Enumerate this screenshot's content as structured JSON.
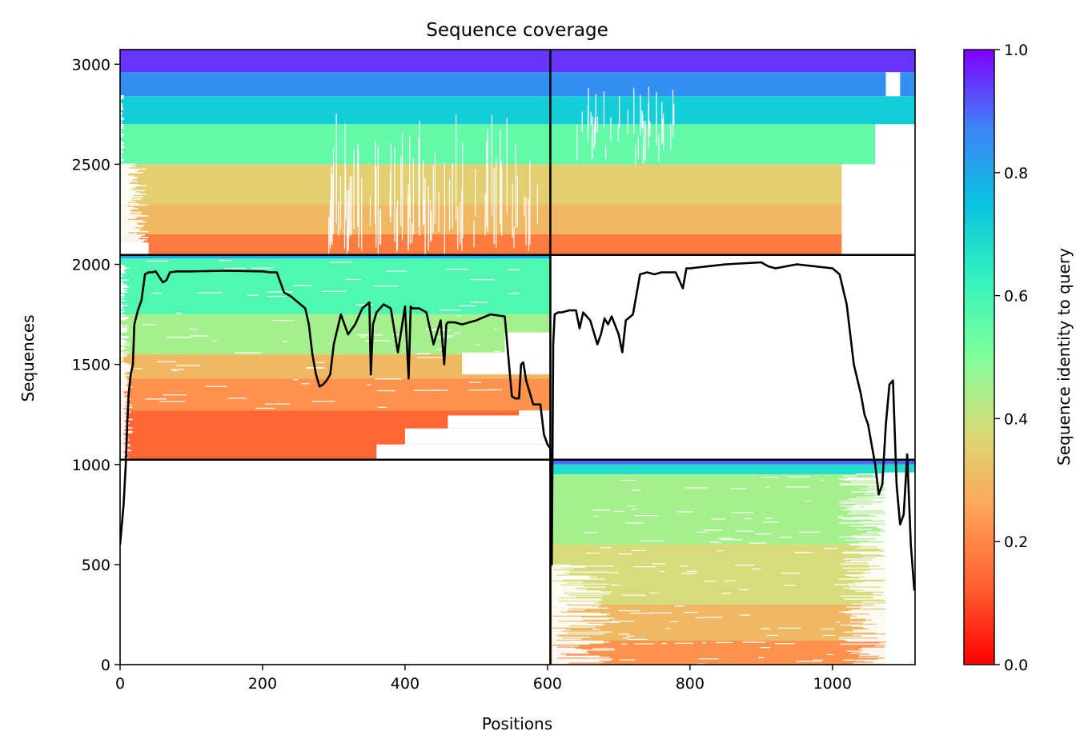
{
  "chart_data": {
    "type": "heatmap",
    "title": "Sequence coverage",
    "xlabel": "Positions",
    "ylabel": "Sequences",
    "xlim": [
      0,
      1116
    ],
    "ylim": [
      0,
      3073
    ],
    "x_ticks": [
      0,
      200,
      400,
      600,
      800,
      1000
    ],
    "y_ticks": [
      0,
      500,
      1000,
      1500,
      2000,
      2500,
      3000
    ],
    "colorbar": {
      "label": "Sequence identity to query",
      "colormap": "rainbow_r",
      "range": [
        0.0,
        1.0
      ],
      "ticks": [
        "0.0",
        "0.2",
        "0.4",
        "0.6",
        "0.8",
        "1.0"
      ]
    },
    "chain_boundary_x": 604,
    "block_boundaries_y": [
      1024,
      2047
    ],
    "blocks": [
      {
        "name": "chain-A-and-chain-B-paired",
        "x": [
          0,
          1116
        ],
        "y": [
          2047,
          3073
        ],
        "identity_bands": [
          {
            "y": [
              2960,
              3073
            ],
            "identity": 0.95
          },
          {
            "y": [
              2840,
              2960
            ],
            "identity": 0.85
          },
          {
            "y": [
              2700,
              2840
            ],
            "identity": 0.72
          },
          {
            "y": [
              2500,
              2700
            ],
            "identity": 0.55
          },
          {
            "y": [
              2300,
              2500
            ],
            "identity": 0.35
          },
          {
            "y": [
              2150,
              2300
            ],
            "identity": 0.3
          },
          {
            "y": [
              2047,
              2150
            ],
            "identity": 0.18
          }
        ]
      },
      {
        "name": "chain-A-unpaired",
        "x": [
          0,
          604
        ],
        "y": [
          1024,
          2047
        ],
        "identity_bands": [
          {
            "y": [
              2030,
              2047
            ],
            "identity": 0.8
          },
          {
            "y": [
              1750,
              2030
            ],
            "identity": 0.58
          },
          {
            "y": [
              1550,
              1750
            ],
            "identity": 0.45
          },
          {
            "y": [
              1430,
              1550
            ],
            "identity": 0.3
          },
          {
            "y": [
              1270,
              1430
            ],
            "identity": 0.22
          },
          {
            "y": [
              1024,
              1270
            ],
            "identity": 0.14
          }
        ]
      },
      {
        "name": "chain-B-unpaired",
        "x": [
          604,
          1116
        ],
        "y": [
          0,
          1024
        ],
        "identity_bands": [
          {
            "y": [
              1000,
              1024
            ],
            "identity": 0.9
          },
          {
            "y": [
              950,
              1000
            ],
            "identity": 0.68
          },
          {
            "y": [
              600,
              950
            ],
            "identity": 0.45
          },
          {
            "y": [
              300,
              600
            ],
            "identity": 0.38
          },
          {
            "y": [
              120,
              300
            ],
            "identity": 0.3
          },
          {
            "y": [
              0,
              120
            ],
            "identity": 0.22
          }
        ]
      }
    ],
    "coverage_line": {
      "x": [
        0,
        5,
        8,
        10,
        12,
        15,
        18,
        20,
        25,
        30,
        35,
        40,
        45,
        50,
        60,
        65,
        70,
        80,
        100,
        150,
        200,
        210,
        220,
        230,
        240,
        250,
        260,
        265,
        270,
        275,
        280,
        285,
        290,
        295,
        300,
        310,
        320,
        330,
        340,
        350,
        352,
        355,
        360,
        370,
        380,
        390,
        400,
        405,
        408,
        410,
        420,
        430,
        440,
        450,
        455,
        458,
        460,
        470,
        480,
        490,
        500,
        520,
        540,
        550,
        555,
        560,
        563,
        566,
        570,
        580,
        590,
        595,
        600,
        604,
        606,
        608,
        610,
        615,
        620,
        630,
        640,
        645,
        650,
        660,
        670,
        675,
        680,
        685,
        690,
        700,
        705,
        710,
        720,
        730,
        740,
        750,
        760,
        780,
        790,
        795,
        800,
        850,
        900,
        910,
        920,
        950,
        1000,
        1010,
        1020,
        1030,
        1040,
        1045,
        1050,
        1055,
        1060,
        1065,
        1070,
        1075,
        1080,
        1085,
        1090,
        1095,
        1100,
        1105,
        1110,
        1115
      ],
      "y": [
        600,
        800,
        1000,
        1200,
        1350,
        1450,
        1500,
        1700,
        1770,
        1820,
        1950,
        1960,
        1960,
        1965,
        1910,
        1920,
        1960,
        1965,
        1965,
        1968,
        1965,
        1960,
        1960,
        1860,
        1840,
        1810,
        1780,
        1700,
        1550,
        1450,
        1390,
        1400,
        1420,
        1450,
        1600,
        1750,
        1650,
        1700,
        1780,
        1810,
        1450,
        1700,
        1760,
        1800,
        1780,
        1560,
        1790,
        1430,
        1790,
        1780,
        1780,
        1760,
        1600,
        1720,
        1500,
        1700,
        1710,
        1710,
        1700,
        1710,
        1720,
        1750,
        1740,
        1340,
        1330,
        1330,
        1500,
        1510,
        1420,
        1300,
        1300,
        1150,
        1100,
        1080,
        500,
        1600,
        1750,
        1760,
        1760,
        1770,
        1770,
        1680,
        1760,
        1720,
        1600,
        1650,
        1730,
        1700,
        1740,
        1650,
        1560,
        1720,
        1750,
        1950,
        1960,
        1950,
        1960,
        1960,
        1880,
        1980,
        1980,
        2000,
        2010,
        1990,
        1980,
        2000,
        1980,
        1950,
        1800,
        1500,
        1350,
        1250,
        1200,
        1100,
        1000,
        850,
        900,
        1200,
        1400,
        1420,
        900,
        700,
        750,
        1050,
        600,
        370
      ]
    },
    "gaps": {
      "block_A_right_edge": [
        [
          1024,
          1245
        ],
        [
          1100,
          1290
        ],
        [
          1270,
          1400
        ],
        [
          1430,
          1480
        ],
        [
          1550,
          1620
        ],
        [
          1750,
          1800
        ],
        [
          2047,
          2047
        ]
      ],
      "block_A_left_white_start_x": 13,
      "block_top_right_white_x": 1013,
      "block_b_right_white_x": 1008
    }
  }
}
